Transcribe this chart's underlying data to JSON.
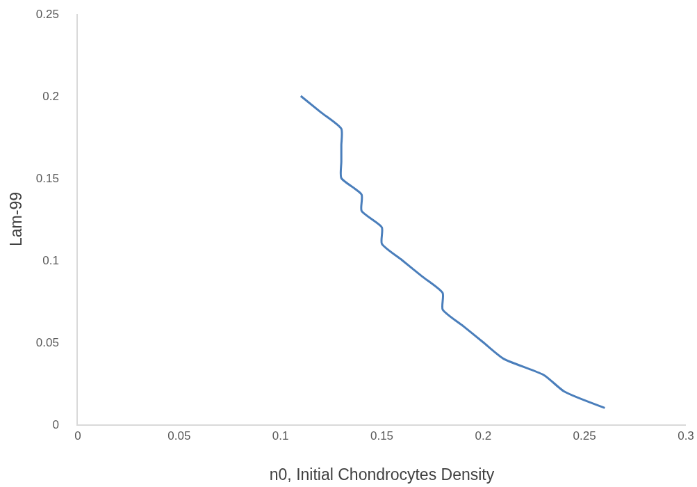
{
  "chart_data": {
    "type": "line",
    "xlabel": "n0, Initial Chondrocytes Density",
    "ylabel": "Lam-99",
    "series": [
      {
        "color": "#4a7ebb",
        "x": [
          0.11,
          0.12,
          0.13,
          0.13,
          0.13,
          0.13,
          0.14,
          0.14,
          0.15,
          0.15,
          0.16,
          0.17,
          0.18,
          0.18,
          0.19,
          0.2,
          0.21,
          0.23,
          0.24,
          0.26
        ],
        "values": [
          0.2,
          0.19,
          0.18,
          0.17,
          0.16,
          0.15,
          0.14,
          0.13,
          0.12,
          0.11,
          0.1,
          0.09,
          0.08,
          0.07,
          0.06,
          0.05,
          0.04,
          0.03,
          0.02,
          0.01
        ]
      }
    ],
    "xlim": [
      0,
      0.3
    ],
    "xticks": [
      0,
      0.05,
      0.1,
      0.15,
      0.2,
      0.25,
      0.3
    ],
    "ylim": [
      0,
      0.25
    ],
    "yticks": [
      0,
      0.05,
      0.1,
      0.15,
      0.2,
      0.25
    ],
    "grid": false,
    "marker": "none",
    "line_style": "solid"
  }
}
